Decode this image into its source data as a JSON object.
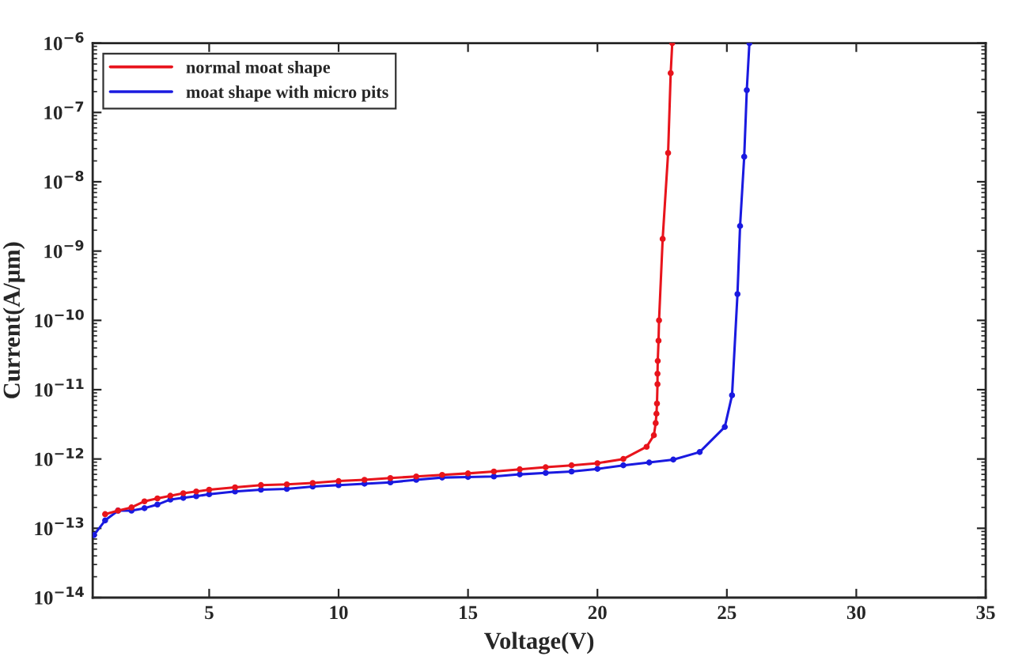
{
  "chart_data": {
    "type": "line",
    "xlabel": "Voltage(V)",
    "ylabel": "Current(A/μm)",
    "log": "y",
    "grid": false,
    "legend": "top left",
    "marker": "circle",
    "line_style": "solid",
    "xlim": [
      0.5,
      35
    ],
    "xticks": [
      5,
      10,
      15,
      20,
      25,
      30,
      35
    ],
    "ylim": [
      1e-14,
      1e-06
    ],
    "yticks": [
      {
        "value": 1e-14,
        "label": "10$^{−14}$"
      },
      {
        "value": 1e-13,
        "label": "10$^{−13}$"
      },
      {
        "value": 1e-12,
        "label": "10$^{−12}$"
      },
      {
        "value": 1e-11,
        "label": "10$^{−11}$"
      },
      {
        "value": 1e-10,
        "label": "10$^{−10}$"
      },
      {
        "value": 1e-09,
        "label": "10$^{−9}$"
      },
      {
        "value": 1e-08,
        "label": "10$^{−8}$"
      },
      {
        "value": 1e-07,
        "label": "10$^{−7}$"
      },
      {
        "value": 1e-06,
        "label": "10$^{−6}$"
      }
    ],
    "series": [
      {
        "name": "normal moat shape",
        "color": "#e8141c",
        "x": [
          0.98,
          1.48,
          2.0,
          2.5,
          3.0,
          3.5,
          4.0,
          4.5,
          5.0,
          6.0,
          7.0,
          8.0,
          9.0,
          10.0,
          11.0,
          12.0,
          13.0,
          14.0,
          15.0,
          16.0,
          17.0,
          18.0,
          19.0,
          20.0,
          21.0,
          21.9,
          22.18,
          22.25,
          22.28,
          22.3,
          22.32,
          22.32,
          22.33,
          22.36,
          22.38,
          22.52,
          22.73,
          22.83,
          22.89
        ],
        "values": [
          1.6e-13,
          1.8e-13,
          2e-13,
          2.45e-13,
          2.7e-13,
          2.95e-13,
          3.2e-13,
          3.4e-13,
          3.6e-13,
          3.9e-13,
          4.2e-13,
          4.3e-13,
          4.5e-13,
          4.8e-13,
          5e-13,
          5.3e-13,
          5.6e-13,
          5.9e-13,
          6.2e-13,
          6.6e-13,
          7.1e-13,
          7.6e-13,
          8.1e-13,
          8.7e-13,
          1e-12,
          1.5e-12,
          2.2e-12,
          3.3e-12,
          4.5e-12,
          6.3e-12,
          1.2e-11,
          1.7e-11,
          2.6e-11,
          5.1e-11,
          1e-10,
          1.5e-09,
          2.6e-08,
          3.7e-07,
          1e-06
        ]
      },
      {
        "name": "moat shape with micro pits",
        "color": "#1a1ae0",
        "x": [
          0.55,
          0.98,
          1.48,
          2.0,
          2.5,
          3.0,
          3.5,
          4.0,
          4.5,
          5.0,
          6.0,
          7.0,
          8.0,
          9.0,
          10.0,
          11.0,
          12.0,
          13.0,
          14.0,
          15.0,
          16.0,
          17.0,
          18.0,
          19.0,
          20.0,
          21.0,
          22.0,
          22.93,
          23.95,
          24.92,
          25.2,
          25.41,
          25.51,
          25.67,
          25.77,
          25.87
        ],
        "values": [
          8e-14,
          1.3e-13,
          1.8e-13,
          1.8e-13,
          1.95e-13,
          2.2e-13,
          2.6e-13,
          2.75e-13,
          2.9e-13,
          3.1e-13,
          3.4e-13,
          3.6e-13,
          3.7e-13,
          4e-13,
          4.2e-13,
          4.4e-13,
          4.6e-13,
          5e-13,
          5.4e-13,
          5.5e-13,
          5.6e-13,
          6e-13,
          6.3e-13,
          6.6e-13,
          7.2e-13,
          8.1e-13,
          8.9e-13,
          9.8e-13,
          1.26e-12,
          2.9e-12,
          8.3e-12,
          2.4e-10,
          2.3e-09,
          2.3e-08,
          2.1e-07,
          1e-06
        ]
      }
    ]
  }
}
